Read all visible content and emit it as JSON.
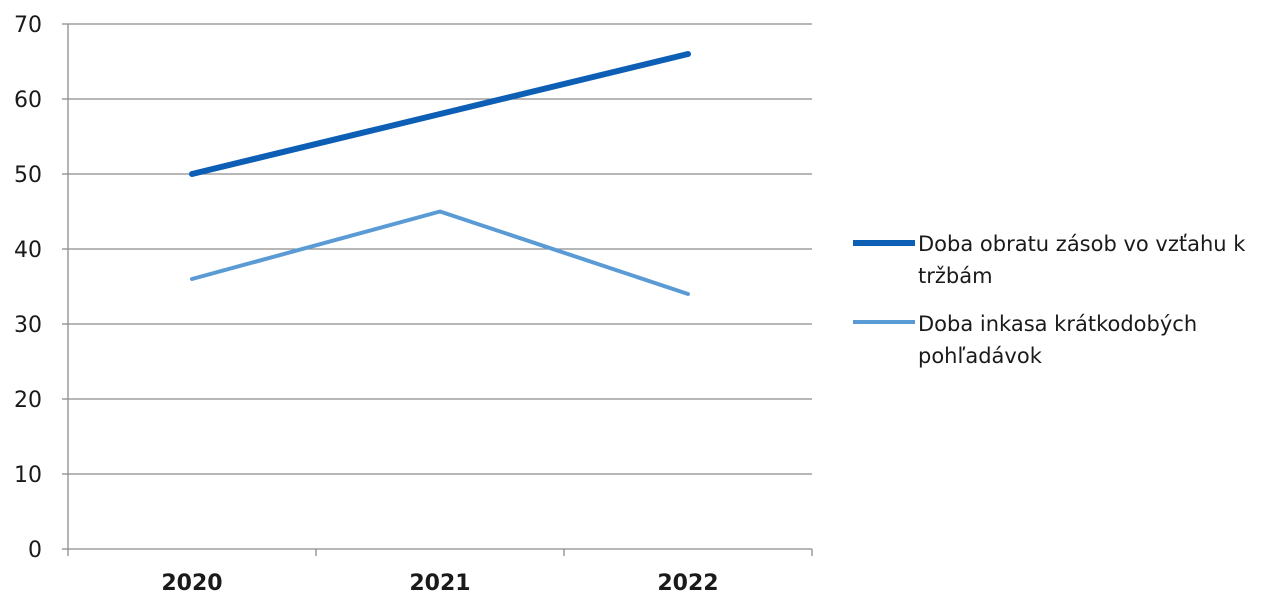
{
  "chart_data": {
    "type": "line",
    "title": "",
    "xlabel": "",
    "ylabel": "",
    "categories": [
      "2020",
      "2021",
      "2022"
    ],
    "ylim": [
      0,
      70
    ],
    "yticks": [
      "0",
      "10",
      "20",
      "30",
      "40",
      "50",
      "60",
      "70"
    ],
    "grid": true,
    "legend_position": "right",
    "series": [
      {
        "name": "Doba obratu zásob vo vzťahu k tržbám",
        "values": [
          50,
          58,
          66
        ],
        "color": "#0d5eb5"
      },
      {
        "name": "Doba inkasa krátkodobých pohľadávok",
        "values": [
          36,
          45,
          34
        ],
        "color": "#5b9bd5"
      }
    ]
  }
}
